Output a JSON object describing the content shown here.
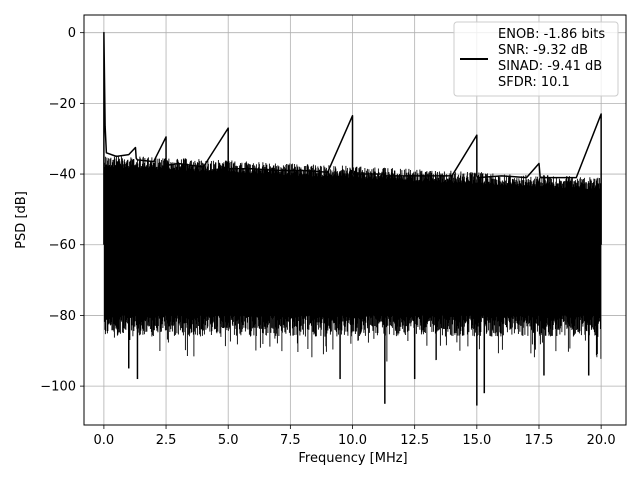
{
  "chart_data": {
    "type": "line",
    "title": "",
    "xlabel": "Frequency [MHz]",
    "ylabel": "PSD [dB]",
    "xlim": [
      -0.8,
      21.0
    ],
    "ylim": [
      -111,
      5
    ],
    "xticks": [
      0.0,
      2.5,
      5.0,
      7.5,
      10.0,
      12.5,
      15.0,
      17.5,
      20.0
    ],
    "xtick_labels": [
      "0.0",
      "2.5",
      "5.0",
      "7.5",
      "10.0",
      "12.5",
      "15.0",
      "17.5",
      "20.0"
    ],
    "yticks": [
      0,
      -20,
      -40,
      -60,
      -80,
      -100
    ],
    "ytick_labels": [
      "0",
      "−20",
      "−40",
      "−60",
      "−80",
      "−100"
    ],
    "grid": true,
    "legend_position": "top-right",
    "legend_lines": [
      "ENOB: -1.86 bits",
      "SNR: -9.32 dB",
      "SINAD: -9.41 dB",
      "SFDR: 10.1"
    ],
    "series": [
      {
        "color": "#000000",
        "x": [
          0.0,
          0.0,
          0.05,
          0.1,
          0.5,
          1.0,
          1.27,
          1.3,
          1.35,
          2.0,
          2.5,
          2.5,
          2.55,
          3.0,
          4.0,
          5.0,
          5.0,
          5.05,
          6.0,
          7.0,
          8.0,
          9.0,
          10.0,
          10.0,
          10.05,
          11.0,
          11.3,
          11.35,
          12.0,
          13.0,
          14.0,
          15.0,
          15.0,
          15.05,
          16.0,
          17.0,
          17.5,
          17.55,
          18.0,
          19.0,
          20.0,
          20.0
        ],
        "y": [
          -60.0,
          0.0,
          -26.5,
          -34.0,
          -35.0,
          -34.5,
          -32.5,
          -35.5,
          -36.0,
          -36.5,
          -29.5,
          -37.0,
          -37.5,
          -37.0,
          -38.0,
          -27.0,
          -38.0,
          -38.5,
          -38.5,
          -39.0,
          -39.0,
          -39.5,
          -23.5,
          -39.5,
          -40.0,
          -40.0,
          -40.0,
          -40.5,
          -40.5,
          -40.5,
          -40.5,
          -29.0,
          -40.5,
          -41.0,
          -40.5,
          -41.0,
          -37.0,
          -41.0,
          -41.0,
          -41.0,
          -23.0,
          -60.0
        ]
      }
    ],
    "noise_floor": {
      "upper_envelope_start": -34.5,
      "upper_envelope_end": -41.0,
      "typical_low": -80,
      "deep_dips": [
        {
          "x": 1.0,
          "y": -95
        },
        {
          "x": 1.35,
          "y": -98
        },
        {
          "x": 9.5,
          "y": -98
        },
        {
          "x": 11.3,
          "y": -105
        },
        {
          "x": 12.5,
          "y": -98
        },
        {
          "x": 15.0,
          "y": -105.5
        },
        {
          "x": 15.3,
          "y": -102
        },
        {
          "x": 17.7,
          "y": -97
        },
        {
          "x": 19.5,
          "y": -97
        }
      ]
    }
  }
}
